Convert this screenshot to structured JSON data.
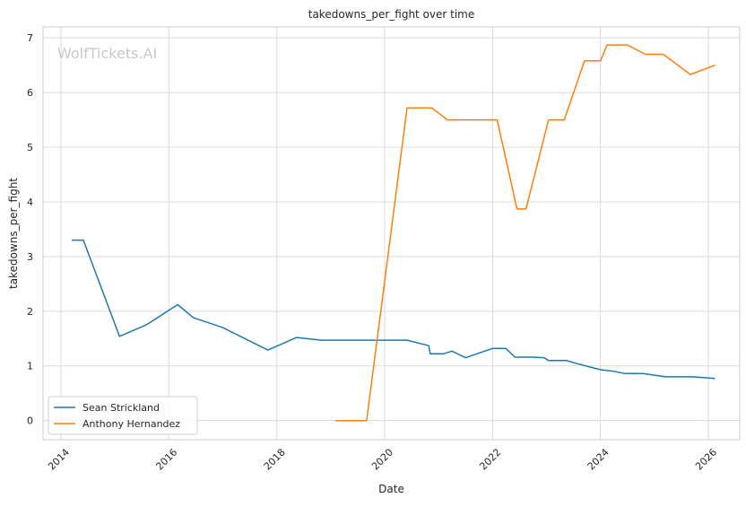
{
  "watermark": "WolfTickets.AI",
  "chart_data": {
    "type": "line",
    "title": "takedowns_per_fight over time",
    "xlabel": "Date",
    "ylabel": "takedowns_per_fight",
    "x_type": "date",
    "xlim": [
      "2013-09-01",
      "2026-08-01"
    ],
    "ylim": [
      -0.35,
      7.2
    ],
    "x_ticks": [
      "2014-01-01",
      "2016-01-01",
      "2018-01-01",
      "2020-01-01",
      "2022-01-01",
      "2024-01-01",
      "2026-01-01"
    ],
    "x_tick_labels": [
      "2014",
      "2016",
      "2018",
      "2020",
      "2022",
      "2024",
      "2026"
    ],
    "y_ticks": [
      0,
      1,
      2,
      3,
      4,
      5,
      6,
      7
    ],
    "y_tick_labels": [
      "0",
      "1",
      "2",
      "3",
      "4",
      "5",
      "6",
      "7"
    ],
    "grid": true,
    "legend_position": "lower-left",
    "series": [
      {
        "name": "Sean Strickland",
        "color": "#1f77b4",
        "points": [
          [
            "2014-03-15",
            3.3
          ],
          [
            "2014-06-01",
            3.3
          ],
          [
            "2015-02-01",
            1.54
          ],
          [
            "2015-08-01",
            1.75
          ],
          [
            "2016-03-01",
            2.12
          ],
          [
            "2016-06-15",
            1.88
          ],
          [
            "2017-01-01",
            1.7
          ],
          [
            "2017-11-01",
            1.29
          ],
          [
            "2018-05-15",
            1.52
          ],
          [
            "2018-11-01",
            1.47
          ],
          [
            "2019-06-01",
            1.47
          ],
          [
            "2020-06-01",
            1.47
          ],
          [
            "2020-10-25",
            1.37
          ],
          [
            "2020-11-05",
            1.22
          ],
          [
            "2021-02-01",
            1.22
          ],
          [
            "2021-04-01",
            1.27
          ],
          [
            "2021-07-01",
            1.15
          ],
          [
            "2022-01-01",
            1.32
          ],
          [
            "2022-04-01",
            1.32
          ],
          [
            "2022-06-01",
            1.16
          ],
          [
            "2022-10-01",
            1.16
          ],
          [
            "2022-12-15",
            1.15
          ],
          [
            "2023-01-15",
            1.1
          ],
          [
            "2023-05-15",
            1.1
          ],
          [
            "2023-07-15",
            1.05
          ],
          [
            "2024-01-01",
            0.93
          ],
          [
            "2024-04-01",
            0.9
          ],
          [
            "2024-06-15",
            0.86
          ],
          [
            "2024-10-15",
            0.86
          ],
          [
            "2025-03-15",
            0.8
          ],
          [
            "2025-09-15",
            0.8
          ],
          [
            "2026-02-15",
            0.77
          ]
        ]
      },
      {
        "name": "Anthony Hernandez",
        "color": "#ff7f0e",
        "points": [
          [
            "2019-02-01",
            0.0
          ],
          [
            "2019-09-01",
            0.0
          ],
          [
            "2020-06-01",
            5.72
          ],
          [
            "2020-11-15",
            5.72
          ],
          [
            "2021-03-01",
            5.5
          ],
          [
            "2022-02-01",
            5.5
          ],
          [
            "2022-06-15",
            3.87
          ],
          [
            "2022-08-15",
            3.87
          ],
          [
            "2023-01-15",
            5.5
          ],
          [
            "2023-05-01",
            5.5
          ],
          [
            "2023-09-15",
            6.58
          ],
          [
            "2024-01-01",
            6.58
          ],
          [
            "2024-02-15",
            6.87
          ],
          [
            "2024-07-01",
            6.87
          ],
          [
            "2024-11-01",
            6.7
          ],
          [
            "2025-03-01",
            6.7
          ],
          [
            "2025-09-01",
            6.33
          ],
          [
            "2026-02-15",
            6.5
          ]
        ]
      }
    ]
  }
}
